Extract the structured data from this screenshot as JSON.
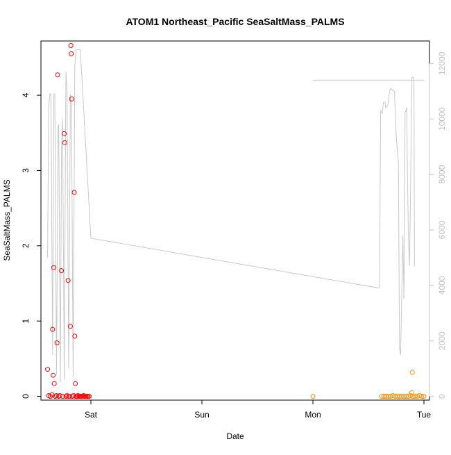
{
  "chart_data": {
    "type": "scatter",
    "title": "ATOM1 Northeast_Pacific SeaSaltMass_PALMS",
    "xlabel": "Date",
    "ylabel": "SeaSaltMass_PALMS",
    "x_ticks": [
      {
        "label": "Sat",
        "value": 1.0
      },
      {
        "label": "Sun",
        "value": 2.0
      },
      {
        "label": "Mon",
        "value": 3.0
      },
      {
        "label": "Tue",
        "value": 4.0
      }
    ],
    "xlim": [
      0.55,
      4.05
    ],
    "ylim": [
      -0.05,
      4.72
    ],
    "y_ticks": [
      0,
      1,
      2,
      3,
      4
    ],
    "y2_ticks": [
      0,
      2000,
      4000,
      6000,
      8000,
      10000,
      12000
    ],
    "y2lim": [
      -135,
      12810
    ],
    "grid": false,
    "colors": {
      "series_1": "#ff0000",
      "series_2": "#ff8c00",
      "altitude_line": "#c8c8c8",
      "axis": "#000000",
      "right_axis": "#c0c0c0"
    },
    "series": [
      {
        "color": "#ff0000",
        "points": [
          [
            0.61,
            0.36
          ],
          [
            0.62,
            0.01
          ],
          [
            0.635,
            0.0
          ],
          [
            0.65,
            0.02
          ],
          [
            0.655,
            0.89
          ],
          [
            0.66,
            0.28
          ],
          [
            0.665,
            1.71
          ],
          [
            0.67,
            0.17
          ],
          [
            0.68,
            0.0
          ],
          [
            0.69,
            0.01
          ],
          [
            0.695,
            0.71
          ],
          [
            0.7,
            4.27
          ],
          [
            0.71,
            0.0
          ],
          [
            0.72,
            0.01
          ],
          [
            0.735,
            1.67
          ],
          [
            0.745,
            0.0
          ],
          [
            0.76,
            3.49
          ],
          [
            0.765,
            3.37
          ],
          [
            0.775,
            0.0
          ],
          [
            0.785,
            0.01
          ],
          [
            0.795,
            1.54
          ],
          [
            0.8,
            0.0
          ],
          [
            0.81,
            0.0
          ],
          [
            0.815,
            0.93
          ],
          [
            0.82,
            4.66
          ],
          [
            0.823,
            4.55
          ],
          [
            0.826,
            3.95
          ],
          [
            0.835,
            0.0
          ],
          [
            0.845,
            0.01
          ],
          [
            0.85,
            2.71
          ],
          [
            0.855,
            0.8
          ],
          [
            0.86,
            0.17
          ],
          [
            0.865,
            0.0
          ],
          [
            0.875,
            0.0
          ],
          [
            0.885,
            0.01
          ],
          [
            0.895,
            0.0
          ],
          [
            0.905,
            0.0
          ],
          [
            0.915,
            0.0
          ],
          [
            0.925,
            0.0
          ],
          [
            0.935,
            0.01
          ],
          [
            0.945,
            0.0
          ],
          [
            0.955,
            0.0
          ],
          [
            0.965,
            0.0
          ],
          [
            0.975,
            0.0
          ],
          [
            0.985,
            0.0
          ]
        ]
      },
      {
        "color": "#ff8c00",
        "points": [
          [
            3.0,
            0.0
          ],
          [
            3.62,
            0.0
          ],
          [
            3.64,
            0.0
          ],
          [
            3.66,
            0.0
          ],
          [
            3.68,
            0.0
          ],
          [
            3.7,
            0.0
          ],
          [
            3.72,
            0.01
          ],
          [
            3.74,
            0.0
          ],
          [
            3.76,
            0.0
          ],
          [
            3.78,
            0.0
          ],
          [
            3.8,
            0.0
          ],
          [
            3.82,
            0.0
          ],
          [
            3.84,
            0.0
          ],
          [
            3.86,
            0.0
          ],
          [
            3.88,
            0.01
          ],
          [
            3.89,
            0.05
          ],
          [
            3.895,
            0.32
          ],
          [
            3.9,
            0.0
          ],
          [
            3.92,
            0.0
          ],
          [
            3.94,
            0.0
          ],
          [
            3.96,
            0.01
          ],
          [
            3.98,
            0.0
          ],
          [
            4.0,
            0.0
          ]
        ]
      }
    ],
    "altitude": {
      "axis": "right",
      "points": [
        [
          0.61,
          5000
        ],
        [
          0.62,
          10400
        ],
        [
          0.63,
          10900
        ],
        [
          0.64,
          10900
        ],
        [
          0.655,
          1500
        ],
        [
          0.665,
          10900
        ],
        [
          0.675,
          10900
        ],
        [
          0.69,
          800
        ],
        [
          0.705,
          9700
        ],
        [
          0.71,
          9800
        ],
        [
          0.725,
          500
        ],
        [
          0.735,
          8900
        ],
        [
          0.745,
          10000
        ],
        [
          0.76,
          600
        ],
        [
          0.775,
          11700
        ],
        [
          0.785,
          11000
        ],
        [
          0.8,
          1000
        ],
        [
          0.815,
          10900
        ],
        [
          0.825,
          10500
        ],
        [
          0.84,
          700
        ],
        [
          0.855,
          11900
        ],
        [
          0.865,
          12500
        ],
        [
          0.875,
          12500
        ],
        [
          0.88,
          12500
        ],
        [
          0.89,
          12500
        ],
        [
          0.905,
          12500
        ],
        [
          1.0,
          5700
        ],
        [
          3.6,
          3900
        ],
        [
          3.61,
          10300
        ],
        [
          3.625,
          10200
        ],
        [
          3.635,
          10600
        ],
        [
          3.65,
          10600
        ],
        [
          3.655,
          10400
        ],
        [
          3.675,
          10500
        ],
        [
          3.69,
          11000
        ],
        [
          3.7,
          11100
        ],
        [
          3.735,
          11000
        ],
        [
          3.74,
          10400
        ],
        [
          3.75,
          9400
        ],
        [
          3.77,
          8400
        ],
        [
          3.78,
          1700
        ],
        [
          3.79,
          1500
        ],
        [
          3.81,
          5800
        ],
        [
          3.82,
          3500
        ],
        [
          3.83,
          10200
        ],
        [
          3.845,
          10400
        ],
        [
          3.85,
          8400
        ],
        [
          3.86,
          5800
        ],
        [
          3.87,
          4700
        ],
        [
          3.88,
          7500
        ],
        [
          3.89,
          11500
        ],
        [
          3.905,
          11500
        ],
        [
          3.91,
          11400
        ],
        [
          3.915,
          4700
        ]
      ],
      "flat_segment": [
        [
          3.0,
          11400
        ],
        [
          4.0,
          11400
        ]
      ]
    }
  }
}
